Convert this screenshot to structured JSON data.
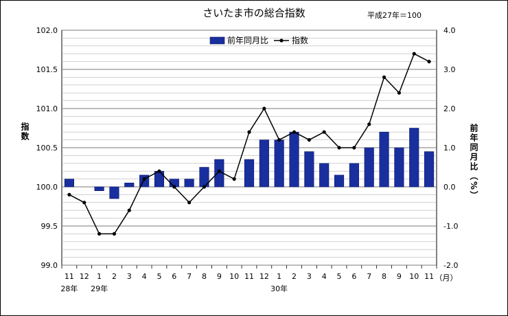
{
  "chart_data": {
    "type": "bar+line",
    "title": "さいたま市の総合指数",
    "note": "平成27年＝100",
    "ylabel_left": "指数",
    "ylabel_right": "前年同月比（%）",
    "month_unit": "（月）",
    "year_labels": [
      {
        "text": "28年",
        "at_index": 0
      },
      {
        "text": "29年",
        "at_index": 2
      },
      {
        "text": "30年",
        "at_index": 14
      }
    ],
    "categories": [
      "11",
      "12",
      "1",
      "2",
      "3",
      "4",
      "5",
      "6",
      "7",
      "8",
      "9",
      "10",
      "11",
      "12",
      "1",
      "2",
      "3",
      "4",
      "5",
      "6",
      "7",
      "8",
      "9",
      "10",
      "11"
    ],
    "legend": {
      "bar": "前年同月比",
      "line": "指数"
    },
    "left_axis": {
      "min": 99.0,
      "max": 102.0,
      "ticks": [
        "99.0",
        "99.5",
        "100.0",
        "100.5",
        "101.0",
        "101.5",
        "102.0"
      ],
      "tick_values": [
        99.0,
        99.5,
        100.0,
        100.5,
        101.0,
        101.5,
        102.0
      ]
    },
    "right_axis": {
      "min": -2.0,
      "max": 4.0,
      "ticks": [
        "-2.0",
        "-1.0",
        "0.0",
        "1.0",
        "2.0",
        "3.0",
        "4.0"
      ],
      "tick_values": [
        -2,
        -1,
        0,
        1,
        2,
        3,
        4
      ]
    },
    "series": [
      {
        "name": "前年同月比",
        "kind": "bar",
        "axis": "right",
        "values": [
          0.2,
          0.0,
          -0.1,
          -0.3,
          0.1,
          0.3,
          0.4,
          0.2,
          0.2,
          0.5,
          0.7,
          0.0,
          0.7,
          1.2,
          1.2,
          1.4,
          0.9,
          0.6,
          0.3,
          0.6,
          1.0,
          1.4,
          1.0,
          1.5,
          0.9
        ]
      },
      {
        "name": "指数",
        "kind": "line",
        "axis": "left",
        "values": [
          99.9,
          99.8,
          99.4,
          99.4,
          99.7,
          100.1,
          100.2,
          100.0,
          99.8,
          100.0,
          100.2,
          100.1,
          100.7,
          101.0,
          100.6,
          100.7,
          100.6,
          100.7,
          100.5,
          100.5,
          100.8,
          101.4,
          101.2,
          101.7,
          101.6
        ]
      }
    ],
    "colors": {
      "bar": "#1a2f9e",
      "line": "#000000",
      "grid": "#9a9a9a"
    }
  }
}
